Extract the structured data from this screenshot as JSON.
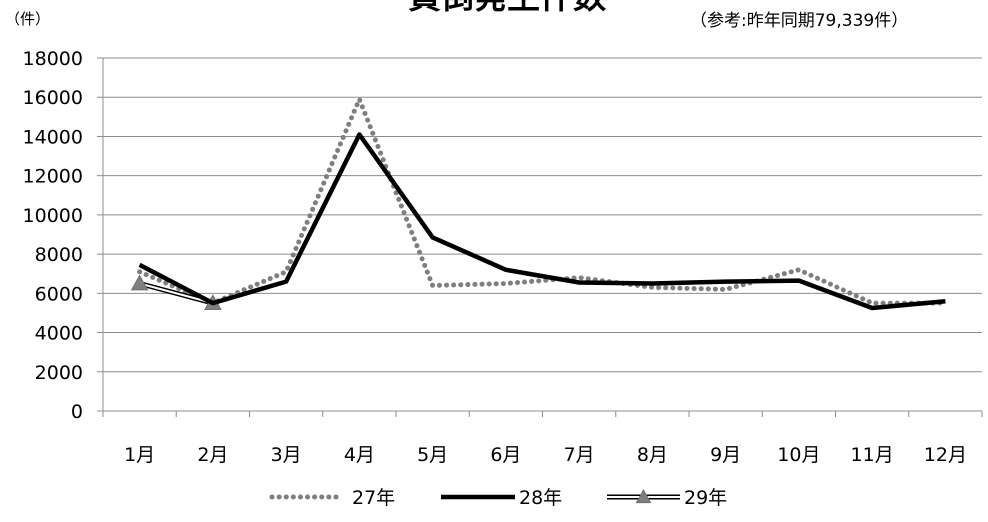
{
  "chart_data": {
    "type": "line",
    "title": "貸倒発生件数",
    "subtitle": "（参考:昨年同期79,339件）",
    "ylabel": "（件）",
    "xlabel": "",
    "categories": [
      "1月",
      "2月",
      "3月",
      "4月",
      "5月",
      "6月",
      "7月",
      "8月",
      "9月",
      "10月",
      "11月",
      "12月"
    ],
    "ylim": [
      0,
      18000
    ],
    "yticks": [
      0,
      2000,
      4000,
      6000,
      8000,
      10000,
      12000,
      14000,
      16000,
      18000
    ],
    "grid": true,
    "legend_position": "bottom",
    "series": [
      {
        "name": "27年",
        "style": "dotted",
        "color": "#7f7f7f",
        "values": [
          7100,
          5500,
          7100,
          15900,
          6400,
          6500,
          6800,
          6300,
          6200,
          7200,
          5500,
          5500
        ]
      },
      {
        "name": "28年",
        "style": "solid-thick",
        "color": "#000000",
        "values": [
          7450,
          5500,
          6600,
          14100,
          8850,
          7200,
          6550,
          6500,
          6600,
          6650,
          5250,
          5600
        ]
      },
      {
        "name": "29年",
        "style": "double-line-triangle",
        "color": "#7f7f7f",
        "values": [
          6500,
          5500,
          null,
          null,
          null,
          null,
          null,
          null,
          null,
          null,
          null,
          null
        ]
      }
    ]
  }
}
